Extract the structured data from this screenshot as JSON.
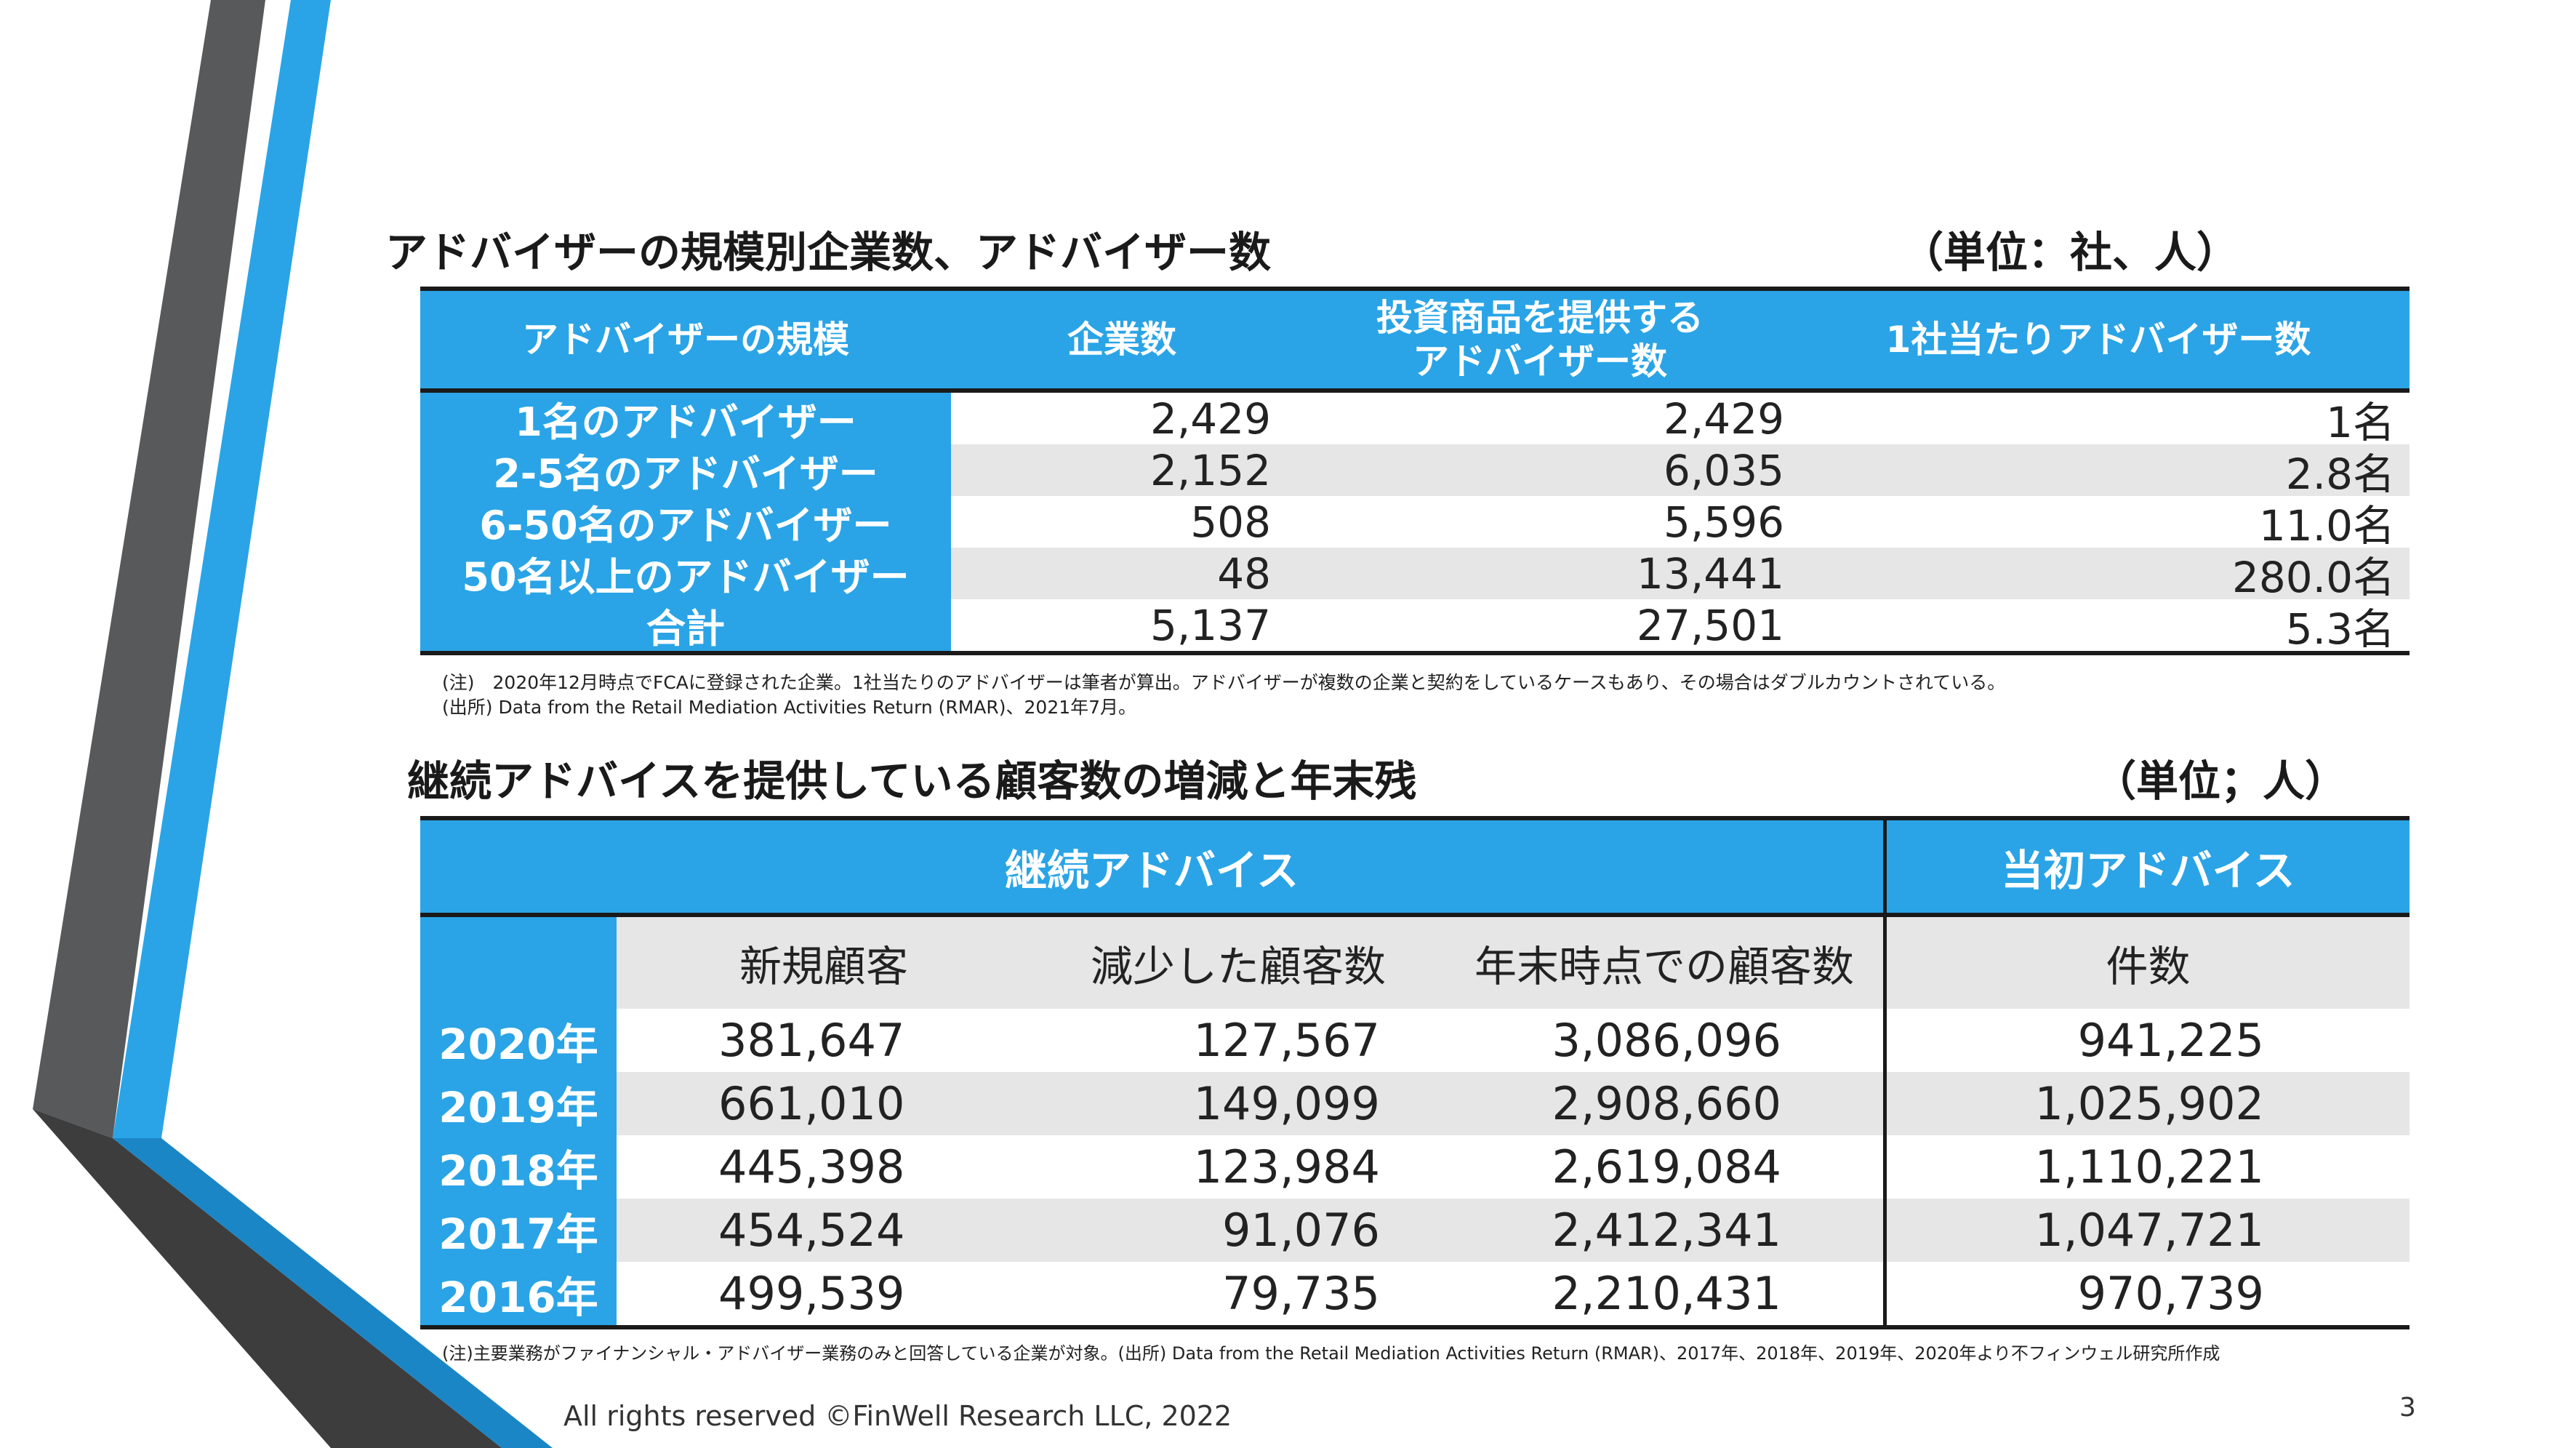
{
  "section1": {
    "title": "アドバイザーの規模別企業数、アドバイザー数",
    "unit": "（単位：社、人）",
    "headers": [
      "アドバイザーの規模",
      "企業数",
      "投資商品を提供する\nアドバイザー数",
      "1社当たりアドバイザー数"
    ],
    "rows": [
      {
        "label": "1名のアドバイザー",
        "firms": "2,429",
        "advisers": "2,429",
        "per_firm": "1名"
      },
      {
        "label": "2-5名のアドバイザー",
        "firms": "2,152",
        "advisers": "6,035",
        "per_firm": "2.8名"
      },
      {
        "label": "6-50名のアドバイザー",
        "firms": "508",
        "advisers": "5,596",
        "per_firm": "11.0名"
      },
      {
        "label": "50名以上のアドバイザー",
        "firms": "48",
        "advisers": "13,441",
        "per_firm": "280.0名"
      },
      {
        "label": "合計",
        "firms": "5,137",
        "advisers": "27,501",
        "per_firm": "5.3名"
      }
    ],
    "note1": "(注)　2020年12月時点でFCAに登録された企業。1社当たりのアドバイザーは筆者が算出。アドバイザーが複数の企業と契約をしているケースもあり、その場合はダブルカウントされている。",
    "note2": "(出所) Data from the Retail Mediation Activities Return (RMAR)、2021年7月。"
  },
  "section2": {
    "title": "継続アドバイスを提供している顧客数の増減と年末残",
    "unit": "（単位；人）",
    "group_headers": [
      "継続アドバイス",
      "当初アドバイス"
    ],
    "sub_headers": [
      "新規顧客",
      "減少した顧客数",
      "年末時点での顧客数",
      "件数"
    ],
    "rows": [
      {
        "year": "2020年",
        "new": "381,647",
        "lost": "127,567",
        "year_end": "3,086,096",
        "count": "941,225"
      },
      {
        "year": "2019年",
        "new": "661,010",
        "lost": "149,099",
        "year_end": "2,908,660",
        "count": "1,025,902"
      },
      {
        "year": "2018年",
        "new": "445,398",
        "lost": "123,984",
        "year_end": "2,619,084",
        "count": "1,110,221"
      },
      {
        "year": "2017年",
        "new": "454,524",
        "lost": "91,076",
        "year_end": "2,412,341",
        "count": "1,047,721"
      },
      {
        "year": "2016年",
        "new": "499,539",
        "lost": "79,735",
        "year_end": "2,210,431",
        "count": "970,739"
      }
    ],
    "note": "(注)主要業務がファイナンシャル・アドバイザー業務のみと回答している企業が対象。(出所)  Data from the Retail Mediation Activities Return (RMAR)、2017年、2018年、2019年、2020年より不フィンウェル研究所作成"
  },
  "footer": {
    "copyright": "All rights reserved ©FinWell Research LLC, 2022",
    "page_number": "3"
  },
  "colors": {
    "accent_blue": "#2aa4e6",
    "dark_gray": "#555555",
    "row_gray": "#e6e6e6"
  }
}
